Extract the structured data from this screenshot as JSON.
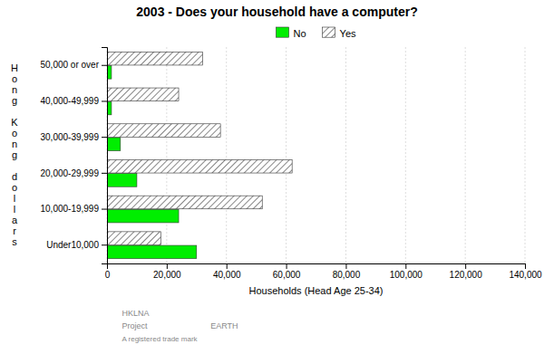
{
  "chart_data": {
    "type": "bar",
    "orientation": "horizontal",
    "title": "2003 - Does your household have a computer?",
    "xlabel": "Households (Head Age 25-34)",
    "ylabel": "Hong Kong dollars",
    "categories": [
      "50,000 or over",
      "40,000-49,999",
      "30,000-39,999",
      "20,000-29,999",
      "10,000-19,999",
      "Under10,000"
    ],
    "series": [
      {
        "name": "No",
        "color": "#00ee00",
        "values": [
          1500,
          1500,
          4500,
          10000,
          24000,
          30000
        ]
      },
      {
        "name": "Yes",
        "color": "white",
        "values": [
          32000,
          24000,
          38000,
          62000,
          52000,
          18000
        ]
      }
    ],
    "xlim": [
      0,
      140000
    ],
    "xticks": [
      0,
      {
        "value": 20000,
        "label": "20,000"
      },
      {
        "value": 40000,
        "label": "40,000"
      },
      {
        "value": 60000,
        "label": "60,000"
      },
      {
        "value": 80000,
        "label": "80,000"
      },
      {
        "value": 100000,
        "label": "100,000"
      },
      {
        "value": 120000,
        "label": "120,000"
      },
      {
        "value": 140000,
        "label": "140,000"
      }
    ],
    "grid": true,
    "legend": "top",
    "annotations": [
      "HKLNA",
      "Project",
      "EARTH",
      "A registered trade mark"
    ]
  }
}
